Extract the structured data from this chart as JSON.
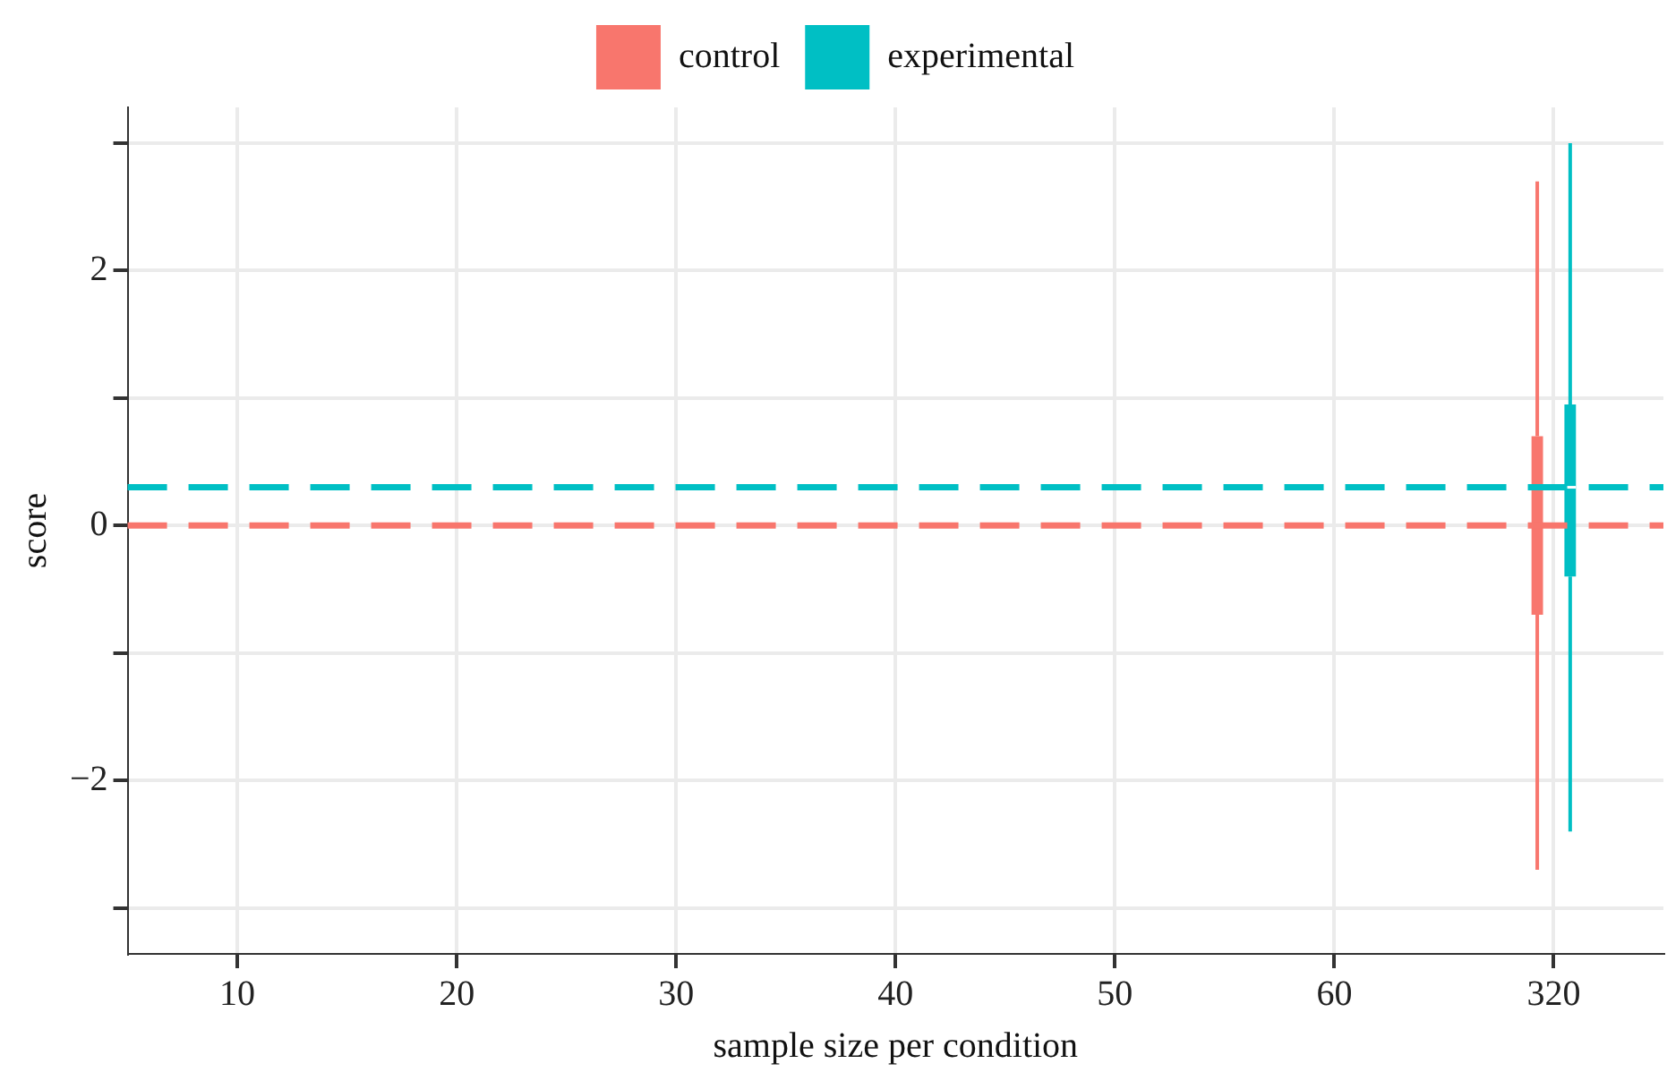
{
  "chart_data": {
    "type": "box",
    "xlabel": "sample size per condition",
    "ylabel": "score",
    "categories": [
      "10",
      "20",
      "30",
      "40",
      "50",
      "60",
      "320"
    ],
    "ylim": [
      -3.36,
      3.28
    ],
    "yticks": [
      {
        "value": -3,
        "label": null
      },
      {
        "value": -2,
        "label": "−2"
      },
      {
        "value": -1,
        "label": null
      },
      0,
      {
        "value": 1,
        "label": null
      },
      2,
      {
        "value": 3,
        "label": null
      }
    ],
    "series": [
      {
        "name": "control",
        "color": "#f8766d",
        "boxes": [
          null,
          null,
          null,
          null,
          null,
          null,
          {
            "low": -2.7,
            "q1": -0.7,
            "median": 0,
            "q3": 0.7,
            "high": 2.7
          }
        ]
      },
      {
        "name": "experimental",
        "color": "#00bfc4",
        "boxes": [
          null,
          null,
          null,
          null,
          null,
          null,
          {
            "low": -2.4,
            "q1": -0.4,
            "median": 0.3,
            "q3": 0.95,
            "high": 3
          }
        ]
      }
    ],
    "ref_lines": [
      {
        "axis": "y",
        "value": 0.3,
        "color": "#00bfc4",
        "line_style": "dashed"
      },
      {
        "axis": "y",
        "value": 0,
        "color": "#f8766d",
        "line_style": "dashed"
      }
    ],
    "grid": true,
    "legend": "top"
  }
}
